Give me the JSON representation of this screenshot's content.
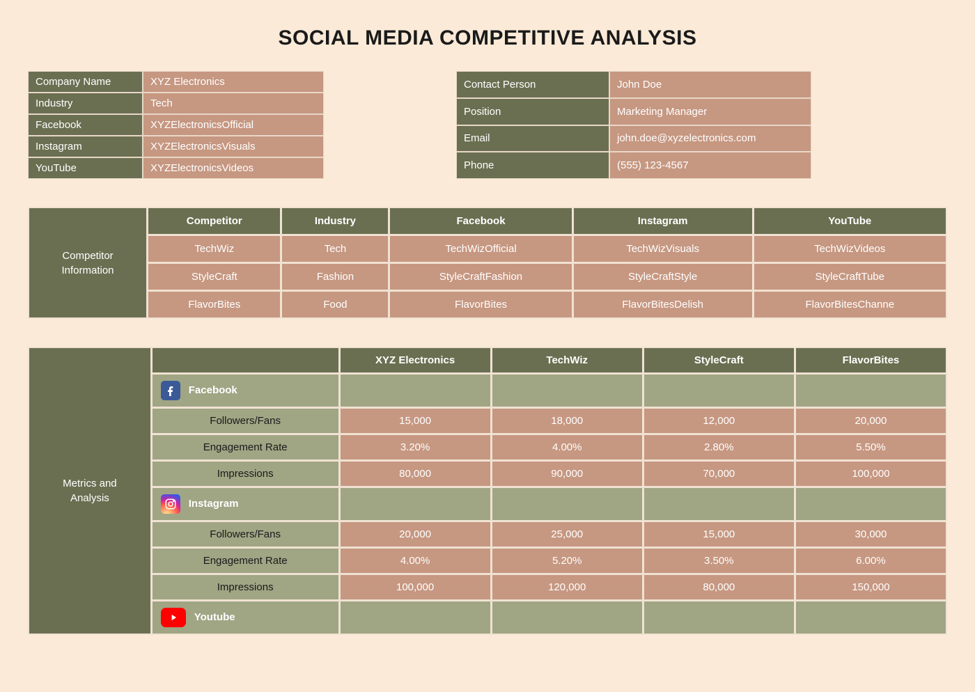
{
  "title": "SOCIAL MEDIA COMPETITIVE ANALYSIS",
  "colors": {
    "page_bg": "#faead7",
    "olive": "#6a6f51",
    "tan": "#c69781",
    "sage": "#a0a584",
    "border": "#f0e2d2",
    "title_text": "#1a1a1a",
    "cell_text": "#ffffff",
    "metric_name_text": "#1a1a1a"
  },
  "company": {
    "rows": [
      {
        "k": "Company Name",
        "v": "XYZ Electronics"
      },
      {
        "k": "Industry",
        "v": "Tech"
      },
      {
        "k": "Facebook",
        "v": "XYZElectronicsOfficial"
      },
      {
        "k": "Instagram",
        "v": "XYZElectronicsVisuals"
      },
      {
        "k": "YouTube",
        "v": "XYZElectronicsVideos"
      }
    ]
  },
  "contact": {
    "rows": [
      {
        "k": "Contact Person",
        "v": "John Doe"
      },
      {
        "k": "Position",
        "v": "Marketing Manager"
      },
      {
        "k": "Email",
        "v": "john.doe@xyzelectronics.com"
      },
      {
        "k": "Phone",
        "v": "(555) 123-4567"
      }
    ]
  },
  "competitor_section": {
    "label": "Competitor Information",
    "headers": [
      "Competitor",
      "Industry",
      "Facebook",
      "Instagram",
      "YouTube"
    ],
    "rows": [
      [
        "TechWiz",
        "Tech",
        "TechWizOfficial",
        "TechWizVisuals",
        "TechWizVideos"
      ],
      [
        "StyleCraft",
        "Fashion",
        "StyleCraftFashion",
        "StyleCraftStyle",
        "StyleCraftTube"
      ],
      [
        "FlavorBites",
        "Food",
        "FlavorBites",
        "FlavorBitesDelish",
        "FlavorBitesChanne"
      ]
    ]
  },
  "metrics_section": {
    "label": "Metrics and Analysis",
    "col_headers": [
      "",
      "XYZ Electronics",
      "TechWiz",
      "StyleCraft",
      "FlavorBites"
    ],
    "platforms": [
      {
        "name": "Facebook",
        "icon": "facebook",
        "metrics": [
          {
            "name": "Followers/Fans",
            "values": [
              "15,000",
              "18,000",
              "12,000",
              "20,000"
            ]
          },
          {
            "name": "Engagement Rate",
            "values": [
              "3.20%",
              "4.00%",
              "2.80%",
              "5.50%"
            ]
          },
          {
            "name": "Impressions",
            "values": [
              "80,000",
              "90,000",
              "70,000",
              "100,000"
            ]
          }
        ]
      },
      {
        "name": "Instagram",
        "icon": "instagram",
        "metrics": [
          {
            "name": "Followers/Fans",
            "values": [
              "20,000",
              "25,000",
              "15,000",
              "30,000"
            ]
          },
          {
            "name": "Engagement Rate",
            "values": [
              "4.00%",
              "5.20%",
              "3.50%",
              "6.00%"
            ]
          },
          {
            "name": "Impressions",
            "values": [
              "100,000",
              "120,000",
              "80,000",
              "150,000"
            ]
          }
        ]
      },
      {
        "name": "Youtube",
        "icon": "youtube",
        "metrics": []
      }
    ]
  }
}
